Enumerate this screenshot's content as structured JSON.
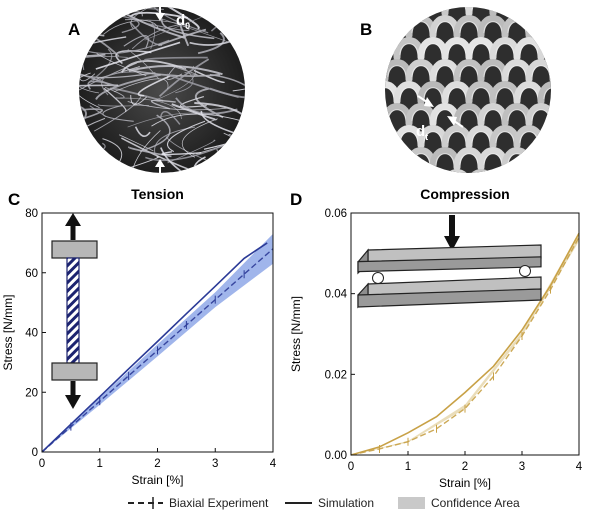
{
  "panels": {
    "A": {
      "letter": "A",
      "annotation_main": "d",
      "annotation_sub": "0"
    },
    "B": {
      "letter": "B",
      "annotation_main": "d",
      "annotation_sub": "t"
    },
    "C": {
      "letter": "C"
    },
    "D": {
      "letter": "D"
    }
  },
  "colors": {
    "tension": "#2b3a97",
    "tension_band": "#8fa8e8",
    "compression": "#c8a146",
    "compression_band": "#e6d7ad",
    "legend_band": "#c9c9c9",
    "fabric_dark": "#2c2c2c",
    "fabric_light": "#d9d9d9"
  },
  "legend": {
    "experiment": "Biaxial Experiment",
    "simulation": "Simulation",
    "confidence": "Confidence Area"
  },
  "chart_data": [
    {
      "type": "line",
      "title": "Tension",
      "xlabel": "Strain [%]",
      "ylabel": "Stress [N/mm]",
      "xlim": [
        0,
        4
      ],
      "ylim": [
        0,
        80
      ],
      "xticks": [
        "0",
        "1",
        "2",
        "3",
        "4"
      ],
      "yticks": [
        "0",
        "20",
        "40",
        "60",
        "80"
      ],
      "series": [
        {
          "name": "Biaxial Experiment",
          "x": [
            0,
            0.5,
            1,
            1.5,
            2,
            2.5,
            3,
            3.5,
            4
          ],
          "y": [
            0,
            8.5,
            17,
            25.5,
            34,
            42.5,
            51,
            59.5,
            68
          ]
        },
        {
          "name": "Simulation",
          "x": [
            0,
            0.5,
            1,
            1.5,
            2,
            2.5,
            3,
            3.5,
            3.9
          ],
          "y": [
            0,
            9.3,
            18.5,
            27.8,
            37,
            46.3,
            55.5,
            64.8,
            70
          ]
        },
        {
          "name": "Confidence Area",
          "x": [
            0,
            1,
            2,
            3,
            4
          ],
          "upper": [
            0,
            18.2,
            36,
            53.5,
            73
          ],
          "lower": [
            0,
            15.8,
            32,
            48.5,
            63
          ]
        }
      ]
    },
    {
      "type": "line",
      "title": "Compression",
      "xlabel": "Strain [%]",
      "ylabel": "Stress [N/mm]",
      "xlim": [
        0,
        4
      ],
      "ylim": [
        0,
        0.06
      ],
      "xticks": [
        "0",
        "1",
        "2",
        "3",
        "4"
      ],
      "yticks": [
        "0.00",
        "0.02",
        "0.04",
        "0.06"
      ],
      "series": [
        {
          "name": "Biaxial Experiment",
          "x": [
            0,
            0.5,
            1,
            1.5,
            2,
            2.5,
            3,
            3.5,
            4
          ],
          "y": [
            0,
            0.0015,
            0.0033,
            0.0065,
            0.0115,
            0.0195,
            0.0295,
            0.041,
            0.054
          ]
        },
        {
          "name": "Simulation",
          "x": [
            0,
            0.5,
            1,
            1.5,
            2,
            2.5,
            3,
            3.5,
            4
          ],
          "y": [
            0,
            0.002,
            0.0055,
            0.0095,
            0.0155,
            0.022,
            0.031,
            0.042,
            0.055
          ]
        },
        {
          "name": "Confidence Area",
          "x": [
            0,
            1,
            2,
            3,
            4
          ],
          "upper": [
            0,
            0.0035,
            0.0125,
            0.0305,
            0.055
          ],
          "lower": [
            0,
            0.0031,
            0.0115,
            0.0295,
            0.053
          ]
        }
      ]
    }
  ]
}
